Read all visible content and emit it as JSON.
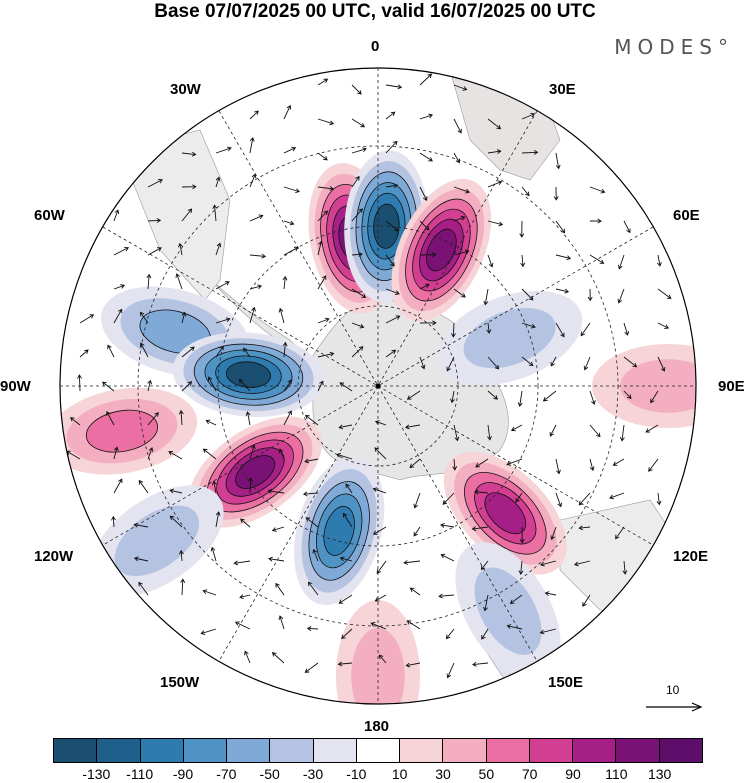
{
  "title": "Base 07/07/2025 00 UTC, valid 16/07/2025 00 UTC",
  "brand": "MODES°",
  "lon_labels": {
    "0": "0",
    "30e": "30E",
    "60e": "60E",
    "90e": "90E",
    "120e": "120E",
    "150e": "150E",
    "180": "180",
    "150w": "150W",
    "120w": "120W",
    "90w": "90W",
    "60w": "60W",
    "30w": "30W"
  },
  "vector_scale": "10",
  "colorbar": {
    "ticks": [
      "-130",
      "-110",
      "-90",
      "-70",
      "-50",
      "-30",
      "-10",
      "10",
      "30",
      "50",
      "70",
      "90",
      "110",
      "130"
    ],
    "colors": [
      "#1b4f72",
      "#1f5f8b",
      "#2e7bb0",
      "#4f93c5",
      "#7fa9d6",
      "#b4c3e2",
      "#e3e4f0",
      "#ffffff",
      "#f6d4d8",
      "#f3aec2",
      "#ec6fa3",
      "#d13e92",
      "#a51f86",
      "#7a1276",
      "#5c0e6a"
    ]
  },
  "anomaly_centers": [
    {
      "lon": -10,
      "value": "positive",
      "strength": 110
    },
    {
      "lon": 3,
      "value": "negative",
      "strength": 130
    },
    {
      "lon": 25,
      "value": "positive",
      "strength": 110
    },
    {
      "lon": 70,
      "value": "negative",
      "strength": 40
    },
    {
      "lon": -75,
      "value": "negative",
      "strength": 60
    },
    {
      "lon": -85,
      "value": "negative",
      "strength": 110
    },
    {
      "lon": -100,
      "value": "positive",
      "strength": 60
    },
    {
      "lon": -125,
      "value": "positive",
      "strength": 110
    },
    {
      "lon": -165,
      "value": "negative",
      "strength": 100
    },
    {
      "lon": 135,
      "value": "positive",
      "strength": 100
    },
    {
      "lon": -125,
      "value": "negative",
      "strength": 40
    },
    {
      "lon": 180,
      "value": "positive",
      "strength": 40
    },
    {
      "lon": 150,
      "value": "negative",
      "strength": 40
    },
    {
      "lon": 90,
      "value": "positive",
      "strength": 30
    }
  ]
}
